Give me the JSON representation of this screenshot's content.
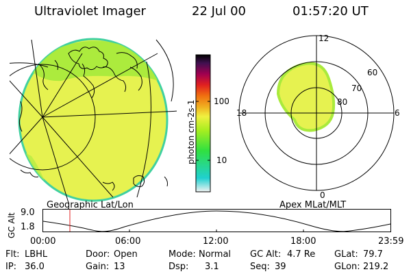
{
  "header": {
    "instrument": "Ultraviolet Imager",
    "date": "22 Jul 00",
    "time": "01:57:20 UT"
  },
  "colorbar": {
    "unit_label": "photon cm-2s-1",
    "ticks": [
      "100",
      "10"
    ],
    "colors": [
      "#e8e8e8",
      "#20d0d0",
      "#30e040",
      "#a8ee20",
      "#e8f040",
      "#f0b020",
      "#f07010",
      "#e03020",
      "#b00040",
      "#701060",
      "#301050",
      "#000000"
    ]
  },
  "panels": {
    "geographic_label": "Geographic Lat/Lon",
    "apex_label": "Apex MLat/MLT"
  },
  "polar": {
    "mlt_labels": {
      "top": "12",
      "bottom": "0",
      "left": "18",
      "right": "6"
    },
    "lat_labels": [
      "60",
      "70",
      "80"
    ]
  },
  "altitude_plot": {
    "ylabel": "GC Alt",
    "yticks": [
      "9.0",
      "1.8"
    ],
    "xticks": [
      "00:00",
      "06:00",
      "12:00",
      "18:00",
      "23:59"
    ]
  },
  "info": {
    "filter_label": "Flt:",
    "filter_value": "LBHL",
    "ip_label": "IP:",
    "ip_value": "36.0",
    "door_label": "Door:",
    "door_value": "Open",
    "gain_label": "Gain:",
    "gain_value": "13",
    "mode_label": "Mode:",
    "mode_value": "Normal",
    "dsp_label": "Dsp:",
    "dsp_value": "3.1",
    "gcalt_label": "GC Alt:",
    "gcalt_value": "4.7 Re",
    "seq_label": "Seq:",
    "seq_value": "39",
    "glat_label": "GLat:",
    "glat_value": "79.7",
    "glon_label": "GLon:",
    "glon_value": "219.2"
  }
}
